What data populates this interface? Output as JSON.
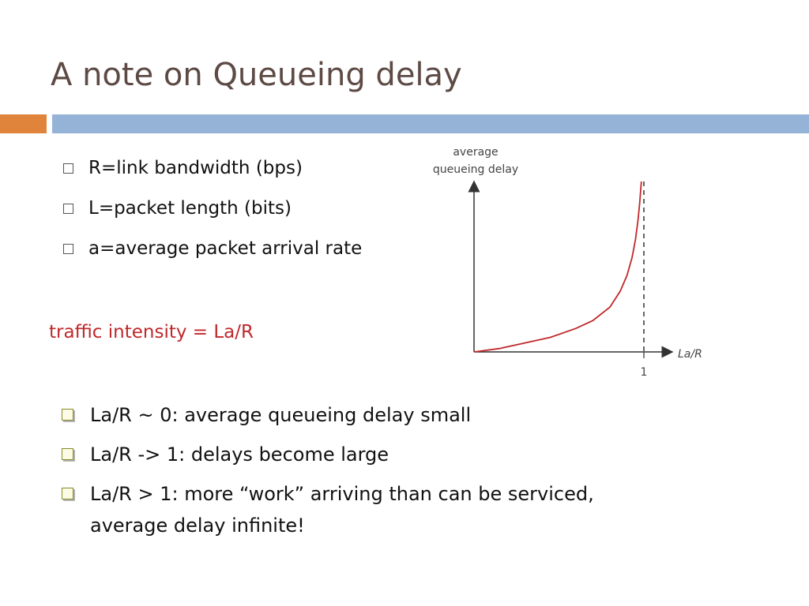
{
  "slide": {
    "title": "A note on Queueing delay",
    "definitions": [
      {
        "text": "R=link bandwidth (bps)"
      },
      {
        "text": "L=packet length (bits)"
      },
      {
        "text": "a=average packet arrival rate"
      }
    ],
    "traffic_intensity": "traffic intensity = La/R",
    "notes": [
      {
        "text": "La/R ~ 0: average queueing delay small"
      },
      {
        "text": "La/R -> 1: delays become large"
      },
      {
        "text": "La/R > 1: more “work” arriving than can be serviced, average delay infinite!"
      }
    ]
  },
  "colors": {
    "title": "#5d4a44",
    "accent_bar": "#e0843c",
    "main_bar": "#95b3d7",
    "traffic_text": "#c0282b",
    "curve": "#c0282b",
    "axis": "#333333"
  },
  "chart_data": {
    "type": "line",
    "ylabel_lines": [
      "average",
      "queueing delay"
    ],
    "xlabel": "La/R",
    "x_ticks": [
      1
    ],
    "xlim": [
      0,
      1.1
    ],
    "series": [
      {
        "x": [
          0,
          0.15,
          0.3,
          0.45,
          0.6,
          0.7,
          0.8,
          0.86,
          0.9,
          0.93,
          0.95,
          0.965,
          0.975,
          0.985
        ],
        "values": [
          0,
          0.3,
          0.8,
          1.3,
          2.1,
          2.8,
          4,
          5.4,
          6.8,
          8.4,
          10,
          11.7,
          13.2,
          15.2
        ]
      }
    ],
    "asymptote_x": 1
  }
}
